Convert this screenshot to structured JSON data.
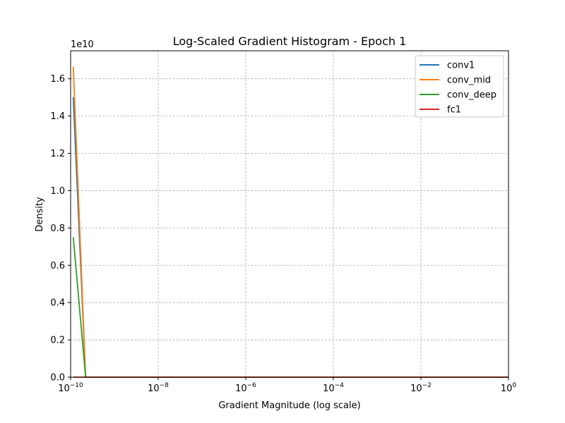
{
  "chart_data": {
    "type": "line",
    "title": "Log-Scaled Gradient Histogram - Epoch 1",
    "xlabel": "Gradient Magnitude (log scale)",
    "ylabel": "Density",
    "y_offset_label": "1e10",
    "xscale": "log",
    "xlim": [
      1e-10,
      1
    ],
    "ylim": [
      0,
      1.75
    ],
    "grid": true,
    "legend_position": "top-right",
    "x_ticks": [
      {
        "base": "10",
        "exp": "−10",
        "value": 1e-10
      },
      {
        "base": "10",
        "exp": "−8",
        "value": 1e-08
      },
      {
        "base": "10",
        "exp": "−6",
        "value": 1e-06
      },
      {
        "base": "10",
        "exp": "−4",
        "value": 0.0001
      },
      {
        "base": "10",
        "exp": "−2",
        "value": 0.01
      },
      {
        "base": "10",
        "exp": "0",
        "value": 1
      }
    ],
    "y_ticks": [
      "0.0",
      "0.2",
      "0.4",
      "0.6",
      "0.8",
      "1.0",
      "1.2",
      "1.4",
      "1.6"
    ],
    "series": [
      {
        "name": "conv1",
        "color": "#1f77b4",
        "x": [
          1.15e-10,
          2.2e-10,
          1.0
        ],
        "y": [
          1.5,
          0.0,
          0.0
        ]
      },
      {
        "name": "conv_mid",
        "color": "#ff7f0e",
        "x": [
          1.15e-10,
          2.2e-10,
          1.0
        ],
        "y": [
          1.665,
          0.0,
          0.0
        ]
      },
      {
        "name": "conv_deep",
        "color": "#2ca02c",
        "x": [
          1.15e-10,
          2.2e-10,
          1.0
        ],
        "y": [
          0.75,
          0.0,
          0.0
        ]
      },
      {
        "name": "fc1",
        "color": "#d62728",
        "x": [
          1.15e-10,
          1.0
        ],
        "y": [
          0.0,
          0.0
        ]
      }
    ]
  }
}
